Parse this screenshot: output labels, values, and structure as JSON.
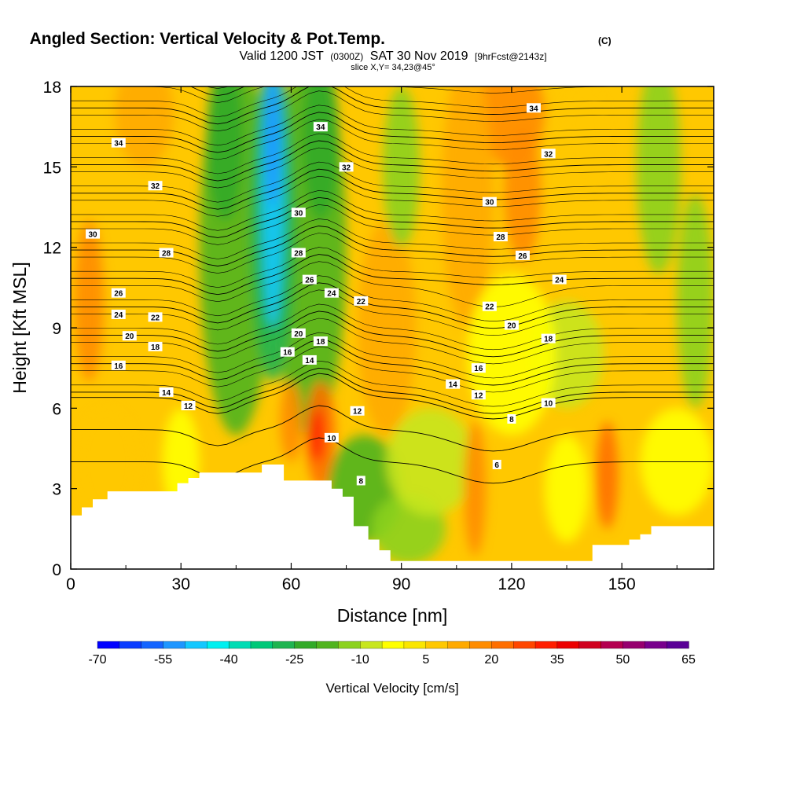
{
  "chart_data": {
    "type": "heatmap",
    "title": "Angled Section: Vertical Velocity & Pot.Temp.",
    "title_unit": "(C)",
    "subtitle": {
      "prefix": "Valid 1200 JST",
      "utc": "(0300Z)",
      "date": "SAT 30 Nov 2019",
      "forecast": "[9hrFcst@2143z]"
    },
    "slice_note": "slice X,Y= 34,23@45°",
    "xlabel": "Distance [nm]",
    "ylabel": "Height [Kft MSL]",
    "xlim": [
      0,
      175
    ],
    "ylim": [
      0,
      18
    ],
    "x_ticks": [
      0,
      30,
      60,
      90,
      120,
      150
    ],
    "x_tick_labels": [
      "0",
      "30",
      "60",
      "90",
      "120",
      "150"
    ],
    "y_ticks": [
      0,
      3,
      6,
      9,
      12,
      15,
      18
    ],
    "y_tick_labels": [
      "0",
      "3",
      "6",
      "9",
      "12",
      "15",
      "18"
    ],
    "grid": false,
    "colorbar": {
      "label": "Vertical Velocity [cm/s]",
      "min": -70,
      "max": 65,
      "step": 5,
      "tick_values": [
        -70,
        -55,
        -40,
        -25,
        -10,
        5,
        20,
        35,
        50,
        65
      ],
      "tick_labels": [
        "-70",
        "-55",
        "-40",
        "-25",
        "-10",
        "5",
        "20",
        "35",
        "50",
        "65"
      ],
      "colors": [
        "#0000ff",
        "#0a3cff",
        "#1464ff",
        "#1e96ff",
        "#14c8ff",
        "#00f0f0",
        "#00dcb4",
        "#00c878",
        "#1eb450",
        "#32aa28",
        "#50b41e",
        "#8cd21e",
        "#c8e61e",
        "#ffff00",
        "#fae600",
        "#ffc800",
        "#ffaa00",
        "#ff8c00",
        "#ff6e00",
        "#ff4600",
        "#ff1e00",
        "#ec0000",
        "#d0001e",
        "#b40050",
        "#96006e",
        "#78008c",
        "#5a0096"
      ]
    },
    "contour_field": "Potential temperature (C)",
    "contour_levels": [
      6,
      8,
      10,
      12,
      14,
      16,
      18,
      20,
      22,
      24,
      26,
      28,
      30,
      32,
      34
    ],
    "contour_labels": [
      {
        "text": "34",
        "x": 13,
        "y": 15.9
      },
      {
        "text": "32",
        "x": 23,
        "y": 14.3
      },
      {
        "text": "30",
        "x": 6,
        "y": 12.5
      },
      {
        "text": "28",
        "x": 26,
        "y": 11.8
      },
      {
        "text": "26",
        "x": 13,
        "y": 10.3
      },
      {
        "text": "24",
        "x": 13,
        "y": 9.5
      },
      {
        "text": "22",
        "x": 23,
        "y": 9.4
      },
      {
        "text": "20",
        "x": 16,
        "y": 8.7
      },
      {
        "text": "18",
        "x": 23,
        "y": 8.3
      },
      {
        "text": "16",
        "x": 13,
        "y": 7.6
      },
      {
        "text": "14",
        "x": 26,
        "y": 6.6
      },
      {
        "text": "12",
        "x": 32,
        "y": 6.1
      },
      {
        "text": "34",
        "x": 68,
        "y": 16.5
      },
      {
        "text": "32",
        "x": 75,
        "y": 15.0
      },
      {
        "text": "30",
        "x": 62,
        "y": 13.3
      },
      {
        "text": "28",
        "x": 62,
        "y": 11.8
      },
      {
        "text": "26",
        "x": 65,
        "y": 10.8
      },
      {
        "text": "24",
        "x": 71,
        "y": 10.3
      },
      {
        "text": "22",
        "x": 79,
        "y": 10.0
      },
      {
        "text": "20",
        "x": 62,
        "y": 8.8
      },
      {
        "text": "18",
        "x": 68,
        "y": 8.5
      },
      {
        "text": "16",
        "x": 59,
        "y": 8.1
      },
      {
        "text": "14",
        "x": 65,
        "y": 7.8
      },
      {
        "text": "12",
        "x": 78,
        "y": 5.9
      },
      {
        "text": "10",
        "x": 71,
        "y": 4.9
      },
      {
        "text": "8",
        "x": 79,
        "y": 3.3
      },
      {
        "text": "34",
        "x": 126,
        "y": 17.2
      },
      {
        "text": "32",
        "x": 130,
        "y": 15.5
      },
      {
        "text": "30",
        "x": 114,
        "y": 13.7
      },
      {
        "text": "28",
        "x": 117,
        "y": 12.4
      },
      {
        "text": "26",
        "x": 123,
        "y": 11.7
      },
      {
        "text": "24",
        "x": 133,
        "y": 10.8
      },
      {
        "text": "22",
        "x": 114,
        "y": 9.8
      },
      {
        "text": "20",
        "x": 120,
        "y": 9.1
      },
      {
        "text": "18",
        "x": 130,
        "y": 8.6
      },
      {
        "text": "16",
        "x": 111,
        "y": 7.5
      },
      {
        "text": "14",
        "x": 104,
        "y": 6.9
      },
      {
        "text": "12",
        "x": 111,
        "y": 6.5
      },
      {
        "text": "10",
        "x": 130,
        "y": 6.2
      },
      {
        "text": "8",
        "x": 120,
        "y": 5.6
      },
      {
        "text": "6",
        "x": 116,
        "y": 3.9
      }
    ],
    "terrain_profile": [
      {
        "x": 0,
        "y": 2.0
      },
      {
        "x": 3,
        "y": 2.0
      },
      {
        "x": 3,
        "y": 2.3
      },
      {
        "x": 6,
        "y": 2.3
      },
      {
        "x": 6,
        "y": 2.6
      },
      {
        "x": 10,
        "y": 2.6
      },
      {
        "x": 10,
        "y": 2.9
      },
      {
        "x": 29,
        "y": 2.9
      },
      {
        "x": 29,
        "y": 3.2
      },
      {
        "x": 32,
        "y": 3.2
      },
      {
        "x": 32,
        "y": 3.4
      },
      {
        "x": 35,
        "y": 3.4
      },
      {
        "x": 35,
        "y": 3.6
      },
      {
        "x": 52,
        "y": 3.6
      },
      {
        "x": 52,
        "y": 3.9
      },
      {
        "x": 58,
        "y": 3.9
      },
      {
        "x": 58,
        "y": 3.3
      },
      {
        "x": 71,
        "y": 3.3
      },
      {
        "x": 71,
        "y": 3.0
      },
      {
        "x": 74,
        "y": 3.0
      },
      {
        "x": 74,
        "y": 2.7
      },
      {
        "x": 77,
        "y": 2.7
      },
      {
        "x": 77,
        "y": 1.6
      },
      {
        "x": 81,
        "y": 1.6
      },
      {
        "x": 81,
        "y": 1.1
      },
      {
        "x": 84,
        "y": 1.1
      },
      {
        "x": 84,
        "y": 0.7
      },
      {
        "x": 87,
        "y": 0.7
      },
      {
        "x": 87,
        "y": 0.3
      },
      {
        "x": 142,
        "y": 0.3
      },
      {
        "x": 142,
        "y": 0.9
      },
      {
        "x": 152,
        "y": 0.9
      },
      {
        "x": 152,
        "y": 1.1
      },
      {
        "x": 155,
        "y": 1.1
      },
      {
        "x": 155,
        "y": 1.3
      },
      {
        "x": 158,
        "y": 1.3
      },
      {
        "x": 158,
        "y": 1.6
      },
      {
        "x": 175,
        "y": 1.6
      }
    ]
  }
}
